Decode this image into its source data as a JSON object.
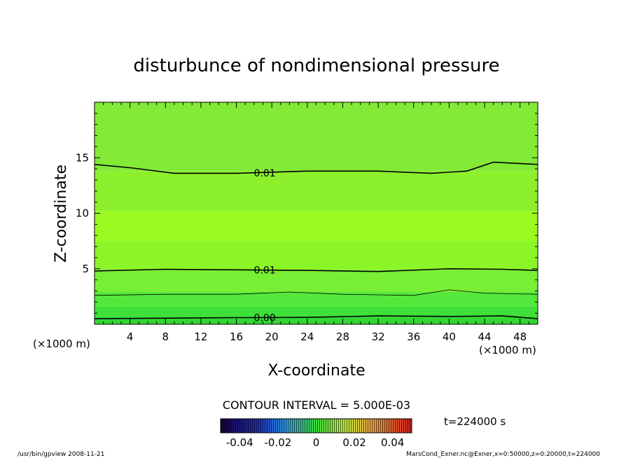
{
  "chart_data": {
    "type": "heatmap",
    "title": "disturbunce of nondimensional pressure",
    "xlabel": "X-coordinate",
    "ylabel": "Z-coordinate",
    "x_unit_left": "(×1000 m)",
    "x_unit_right": "(×1000 m)",
    "xlim": [
      0,
      50
    ],
    "ylim": [
      0,
      20
    ],
    "x_ticks": [
      "4",
      "8",
      "12",
      "16",
      "20",
      "24",
      "28",
      "32",
      "36",
      "40",
      "44",
      "48"
    ],
    "y_ticks": [
      "5",
      "10",
      "15"
    ],
    "contour_interval_text": "CONTOUR INTERVAL = 5.000E-03",
    "time_text": "t=224000 s",
    "colorbar": {
      "ticks": [
        "-0.04",
        "-0.02",
        "0",
        "0.02",
        "0.04"
      ],
      "range": [
        -0.05,
        0.05
      ]
    },
    "color_bands": [
      {
        "z0": 0.0,
        "z1": 0.6,
        "color": "#33d633"
      },
      {
        "z0": 0.6,
        "z1": 1.6,
        "color": "#3fe03a"
      },
      {
        "z0": 1.6,
        "z1": 2.9,
        "color": "#55e83c"
      },
      {
        "z0": 2.9,
        "z1": 4.9,
        "color": "#78ee34"
      },
      {
        "z0": 4.9,
        "z1": 7.5,
        "color": "#8cf528"
      },
      {
        "z0": 7.5,
        "z1": 10.2,
        "color": "#9afa20"
      },
      {
        "z0": 10.2,
        "z1": 13.8,
        "color": "#8cf02c"
      },
      {
        "z0": 13.8,
        "z1": 20.0,
        "color": "#84ea38"
      }
    ],
    "contours": [
      {
        "level": "0.00",
        "points": [
          [
            0,
            0.5
          ],
          [
            8,
            0.55
          ],
          [
            16,
            0.6
          ],
          [
            24,
            0.62
          ],
          [
            32,
            0.75
          ],
          [
            40,
            0.7
          ],
          [
            46,
            0.75
          ],
          [
            50,
            0.5
          ]
        ],
        "label_x": 17.5
      },
      {
        "level": "",
        "thin": true,
        "points": [
          [
            0,
            2.6
          ],
          [
            8,
            2.7
          ],
          [
            16,
            2.7
          ],
          [
            22,
            2.9
          ],
          [
            28,
            2.7
          ],
          [
            36,
            2.6
          ],
          [
            40,
            3.1
          ],
          [
            44,
            2.8
          ],
          [
            50,
            2.7
          ]
        ]
      },
      {
        "level": "0.01",
        "points": [
          [
            0,
            4.8
          ],
          [
            8,
            4.95
          ],
          [
            16,
            4.9
          ],
          [
            24,
            4.85
          ],
          [
            32,
            4.75
          ],
          [
            40,
            5.0
          ],
          [
            46,
            4.95
          ],
          [
            50,
            4.85
          ]
        ],
        "label_x": 17.5
      },
      {
        "level": "0.01",
        "points": [
          [
            0,
            14.4
          ],
          [
            4,
            14.1
          ],
          [
            9,
            13.6
          ],
          [
            16,
            13.6
          ],
          [
            24,
            13.8
          ],
          [
            32,
            13.8
          ],
          [
            38,
            13.6
          ],
          [
            42,
            13.8
          ],
          [
            45,
            14.6
          ],
          [
            50,
            14.4
          ]
        ],
        "label_x": 17.5
      }
    ]
  },
  "footer": {
    "left": "/usr/bin/gpview   2008-11-21",
    "right": "MarsCond_Exner.nc@Exner,x=0:50000,z=0:20000,t=224000"
  }
}
